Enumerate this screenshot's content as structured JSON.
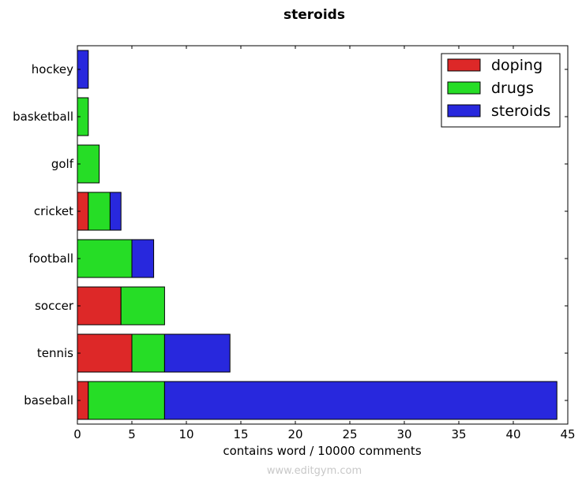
{
  "chart_data": {
    "type": "bar",
    "orientation": "horizontal",
    "stacked": true,
    "title": "steroids",
    "xlabel": "contains word / 10000 comments",
    "ylabel": "",
    "xlim": [
      0,
      45
    ],
    "x_ticks": [
      "0",
      "5",
      "10",
      "15",
      "20",
      "25",
      "30",
      "35",
      "40",
      "45"
    ],
    "categories": [
      "hockey",
      "basketball",
      "golf",
      "cricket",
      "football",
      "soccer",
      "tennis",
      "baseball"
    ],
    "series": [
      {
        "name": "doping",
        "color": "#dd2828",
        "values": [
          0,
          0,
          0,
          1,
          0,
          4,
          5,
          1
        ]
      },
      {
        "name": "drugs",
        "color": "#26dd26",
        "values": [
          0,
          1,
          2,
          2,
          5,
          4,
          3,
          7
        ]
      },
      {
        "name": "steroids",
        "color": "#2828dd",
        "values": [
          1,
          0,
          0,
          1,
          2,
          0,
          6,
          36
        ]
      }
    ],
    "legend_position": "top-right",
    "grid": false
  },
  "watermark": "www.editgym.com"
}
